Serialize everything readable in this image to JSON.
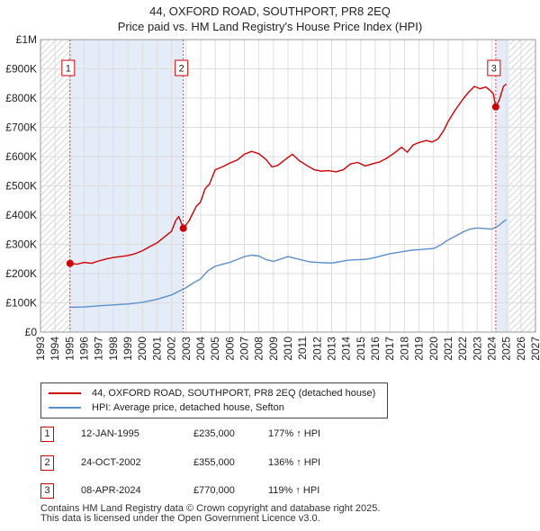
{
  "title_line1": "44, OXFORD ROAD, SOUTHPORT, PR8 2EQ",
  "title_line2": "Price paid vs. HM Land Registry's House Price Index (HPI)",
  "chart_data": {
    "type": "line",
    "title": "44, OXFORD ROAD, SOUTHPORT, PR8 2EQ — Price paid vs. HM Land Registry's House Price Index (HPI)",
    "xlabel": "",
    "ylabel": "",
    "xlim": [
      1993,
      2027
    ],
    "ylim": [
      0,
      1000000
    ],
    "x_ticks": [
      "1993",
      "1994",
      "1995",
      "1996",
      "1997",
      "1998",
      "1999",
      "2000",
      "2001",
      "2002",
      "2003",
      "2004",
      "2005",
      "2006",
      "2007",
      "2008",
      "2009",
      "2010",
      "2011",
      "2012",
      "2013",
      "2014",
      "2015",
      "2016",
      "2017",
      "2018",
      "2019",
      "2020",
      "2021",
      "2022",
      "2023",
      "2024",
      "2025",
      "2026",
      "2027"
    ],
    "y_ticks": [
      {
        "value": 0,
        "label": "£0"
      },
      {
        "value": 100000,
        "label": "£100K"
      },
      {
        "value": 200000,
        "label": "£200K"
      },
      {
        "value": 300000,
        "label": "£300K"
      },
      {
        "value": 400000,
        "label": "£400K"
      },
      {
        "value": 500000,
        "label": "£500K"
      },
      {
        "value": 600000,
        "label": "£600K"
      },
      {
        "value": 700000,
        "label": "£700K"
      },
      {
        "value": 800000,
        "label": "£800K"
      },
      {
        "value": 900000,
        "label": "£900K"
      },
      {
        "value": 1000000,
        "label": "£1M"
      }
    ],
    "grid": true,
    "shaded_ranges": [
      {
        "from": 1995.03,
        "to": 2002.81,
        "style": "light-blue"
      },
      {
        "from": 2024.27,
        "to": 2025.2,
        "style": "light-blue"
      }
    ],
    "hatched_ranges": [
      {
        "from": 1993,
        "to": 1995.03
      },
      {
        "from": 2025.2,
        "to": 2027
      }
    ],
    "series": [
      {
        "name": "44, OXFORD ROAD, SOUTHPORT, PR8 2EQ (detached house)",
        "color": "#cc0000",
        "points": [
          [
            1995.03,
            235000
          ],
          [
            1995.5,
            232000
          ],
          [
            1996,
            238000
          ],
          [
            1996.5,
            235000
          ],
          [
            1997,
            243000
          ],
          [
            1997.5,
            250000
          ],
          [
            1998,
            255000
          ],
          [
            1998.5,
            258000
          ],
          [
            1999,
            262000
          ],
          [
            1999.5,
            268000
          ],
          [
            2000,
            278000
          ],
          [
            2000.5,
            292000
          ],
          [
            2001,
            305000
          ],
          [
            2001.5,
            325000
          ],
          [
            2002,
            345000
          ],
          [
            2002.3,
            382000
          ],
          [
            2002.5,
            395000
          ],
          [
            2002.81,
            355000
          ],
          [
            2003.2,
            380000
          ],
          [
            2003.7,
            430000
          ],
          [
            2004,
            445000
          ],
          [
            2004.3,
            490000
          ],
          [
            2004.6,
            505000
          ],
          [
            2005,
            555000
          ],
          [
            2005.5,
            565000
          ],
          [
            2006,
            578000
          ],
          [
            2006.5,
            588000
          ],
          [
            2007,
            608000
          ],
          [
            2007.5,
            618000
          ],
          [
            2008,
            610000
          ],
          [
            2008.5,
            590000
          ],
          [
            2008.9,
            565000
          ],
          [
            2009.3,
            570000
          ],
          [
            2009.8,
            590000
          ],
          [
            2010.3,
            608000
          ],
          [
            2010.8,
            585000
          ],
          [
            2011.3,
            570000
          ],
          [
            2011.8,
            555000
          ],
          [
            2012.3,
            550000
          ],
          [
            2012.8,
            552000
          ],
          [
            2013.3,
            548000
          ],
          [
            2013.8,
            555000
          ],
          [
            2014.3,
            575000
          ],
          [
            2014.8,
            580000
          ],
          [
            2015.3,
            568000
          ],
          [
            2015.8,
            575000
          ],
          [
            2016.3,
            582000
          ],
          [
            2016.8,
            595000
          ],
          [
            2017.3,
            612000
          ],
          [
            2017.8,
            632000
          ],
          [
            2018.2,
            615000
          ],
          [
            2018.6,
            640000
          ],
          [
            2019,
            648000
          ],
          [
            2019.5,
            655000
          ],
          [
            2019.9,
            650000
          ],
          [
            2020.3,
            660000
          ],
          [
            2020.7,
            690000
          ],
          [
            2021,
            720000
          ],
          [
            2021.5,
            760000
          ],
          [
            2022,
            795000
          ],
          [
            2022.4,
            820000
          ],
          [
            2022.8,
            840000
          ],
          [
            2023.2,
            832000
          ],
          [
            2023.6,
            838000
          ],
          [
            2023.9,
            825000
          ],
          [
            2024.1,
            815000
          ],
          [
            2024.27,
            770000
          ],
          [
            2024.5,
            792000
          ],
          [
            2024.8,
            840000
          ],
          [
            2025,
            848000
          ]
        ]
      },
      {
        "name": "HPI: Average price, detached house, Sefton",
        "color": "#5b8fd0",
        "points": [
          [
            1995,
            85000
          ],
          [
            1996,
            86000
          ],
          [
            1997,
            90000
          ],
          [
            1998,
            93000
          ],
          [
            1999,
            96000
          ],
          [
            2000,
            102000
          ],
          [
            2001,
            112000
          ],
          [
            2002,
            127000
          ],
          [
            2003,
            152000
          ],
          [
            2003.5,
            168000
          ],
          [
            2004,
            182000
          ],
          [
            2004.5,
            210000
          ],
          [
            2005,
            225000
          ],
          [
            2005.5,
            232000
          ],
          [
            2006,
            238000
          ],
          [
            2006.5,
            248000
          ],
          [
            2007,
            258000
          ],
          [
            2007.5,
            263000
          ],
          [
            2008,
            260000
          ],
          [
            2008.5,
            248000
          ],
          [
            2009,
            242000
          ],
          [
            2009.5,
            250000
          ],
          [
            2010,
            258000
          ],
          [
            2010.5,
            252000
          ],
          [
            2011,
            246000
          ],
          [
            2011.5,
            240000
          ],
          [
            2012,
            238000
          ],
          [
            2012.5,
            237000
          ],
          [
            2013,
            236000
          ],
          [
            2013.5,
            240000
          ],
          [
            2014,
            245000
          ],
          [
            2014.5,
            247000
          ],
          [
            2015,
            248000
          ],
          [
            2015.5,
            250000
          ],
          [
            2016,
            255000
          ],
          [
            2016.5,
            262000
          ],
          [
            2017,
            268000
          ],
          [
            2017.5,
            272000
          ],
          [
            2018,
            276000
          ],
          [
            2018.5,
            280000
          ],
          [
            2019,
            282000
          ],
          [
            2019.5,
            284000
          ],
          [
            2020,
            286000
          ],
          [
            2020.5,
            298000
          ],
          [
            2021,
            315000
          ],
          [
            2021.5,
            328000
          ],
          [
            2022,
            342000
          ],
          [
            2022.5,
            352000
          ],
          [
            2023,
            356000
          ],
          [
            2023.5,
            354000
          ],
          [
            2024,
            352000
          ],
          [
            2024.5,
            365000
          ],
          [
            2024.8,
            378000
          ],
          [
            2025,
            385000
          ]
        ]
      }
    ],
    "markers": [
      {
        "label": "1",
        "x": 1995.03,
        "y": 235000
      },
      {
        "label": "2",
        "x": 2002.81,
        "y": 355000
      },
      {
        "label": "3",
        "x": 2024.27,
        "y": 770000
      }
    ]
  },
  "legend": {
    "series1": "44, OXFORD ROAD, SOUTHPORT, PR8 2EQ (detached house)",
    "series2": "HPI: Average price, detached house, Sefton"
  },
  "sales": [
    {
      "num": "1",
      "date": "12-JAN-1995",
      "price": "£235,000",
      "hpi": "177% ↑ HPI"
    },
    {
      "num": "2",
      "date": "24-OCT-2002",
      "price": "£355,000",
      "hpi": "136% ↑ HPI"
    },
    {
      "num": "3",
      "date": "08-APR-2024",
      "price": "£770,000",
      "hpi": "119% ↑ HPI"
    }
  ],
  "footer": {
    "line1": "Contains HM Land Registry data © Crown copyright and database right 2025.",
    "line2": "This data is licensed under the Open Government Licence v3.0."
  }
}
